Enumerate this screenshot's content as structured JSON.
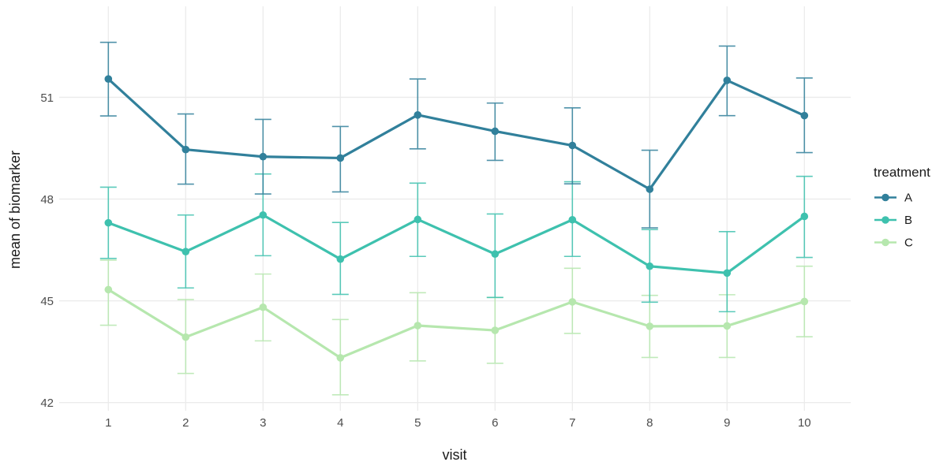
{
  "chart_data": {
    "type": "line",
    "title": "",
    "xlabel": "visit",
    "ylabel": "mean of biomarker",
    "xticks": [
      1,
      2,
      3,
      4,
      5,
      6,
      7,
      8,
      9,
      10
    ],
    "yticks": [
      42,
      45,
      48,
      51
    ],
    "ylim": [
      41.7,
      53.7
    ],
    "xlim": [
      0.55,
      10.45
    ],
    "grid": "major-only",
    "point_style": "filled-circle-with-error-bars",
    "legend": {
      "title": "treatment",
      "position": "right",
      "items": [
        "A",
        "B",
        "C"
      ]
    },
    "colors": {
      "background": "#FFFFFF",
      "grid": "#EBEBEB",
      "tick_label": "#4D4D4D",
      "axis_title": "#1A1A1A",
      "series_A": "#31809B",
      "series_B": "#3EC1AE",
      "series_C": "#B6E7AE"
    },
    "series": [
      {
        "name": "A",
        "color": "#31809B",
        "values": [
          51.54,
          49.46,
          49.25,
          49.21,
          50.48,
          50.0,
          49.58,
          48.29,
          51.5,
          50.46
        ],
        "error_low": [
          50.45,
          48.44,
          48.15,
          48.21,
          49.48,
          49.14,
          48.45,
          47.15,
          50.46,
          49.37
        ],
        "error_high": [
          52.62,
          50.51,
          50.35,
          50.14,
          51.54,
          50.83,
          50.69,
          49.44,
          52.51,
          51.57
        ]
      },
      {
        "name": "B",
        "color": "#3EC1AE",
        "values": [
          47.3,
          46.45,
          47.53,
          46.23,
          47.4,
          46.38,
          47.39,
          46.02,
          45.82,
          47.49
        ],
        "error_low": [
          46.25,
          45.38,
          46.33,
          45.19,
          46.31,
          45.1,
          46.31,
          44.96,
          44.68,
          46.28
        ],
        "error_high": [
          48.35,
          47.53,
          48.74,
          47.31,
          48.47,
          47.56,
          48.51,
          47.1,
          47.04,
          48.67
        ]
      },
      {
        "name": "C",
        "color": "#B6E7AE",
        "values": [
          45.33,
          43.93,
          44.81,
          43.32,
          44.27,
          44.13,
          44.97,
          44.25,
          44.26,
          44.98
        ],
        "error_low": [
          44.28,
          42.86,
          43.82,
          42.23,
          43.23,
          43.16,
          44.04,
          43.33,
          43.33,
          43.94
        ],
        "error_high": [
          46.2,
          45.04,
          45.79,
          44.45,
          45.24,
          45.1,
          45.96,
          45.16,
          45.18,
          46.02
        ]
      }
    ]
  }
}
